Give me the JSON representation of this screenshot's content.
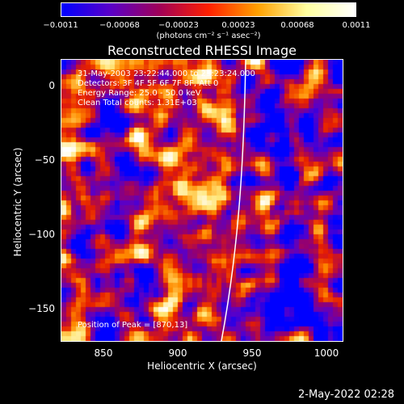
{
  "colorbar": {
    "ticks": [
      "−0.0011",
      "−0.00068",
      "−0.00023",
      "0.00023",
      "0.00068",
      "0.0011"
    ],
    "unit": "(photons cm⁻² s⁻¹ asec⁻²)",
    "colors": [
      "#0000ff",
      "#5a00c8",
      "#a00058",
      "#ff2000",
      "#ffa000",
      "#ffffa0",
      "#ffffff"
    ]
  },
  "title": "Reconstructed RHESSI Image",
  "info": {
    "line1": "31-May-2003 23:22:44.000 to 23:23:24.000",
    "line2": "Detectors: 3F 4F 5F 6F 7F 8F, Att 0",
    "line3": "Energy Range: 25.0 - 50.0 keV",
    "line4": "Clean     Total counts: 1.31E+03",
    "peak": "Position of Peak = [870,13]"
  },
  "xaxis": {
    "label": "Heliocentric X (arcsec)",
    "ticks": [
      "850",
      "900",
      "950",
      "1000"
    ],
    "range": [
      822,
      1012
    ]
  },
  "yaxis": {
    "label": "Heliocentric Y (arcsec)",
    "ticks": [
      "0",
      "−50",
      "−100",
      "−150"
    ],
    "range": [
      -172,
      18
    ]
  },
  "timestamp": "2-May-2022 02:28"
}
